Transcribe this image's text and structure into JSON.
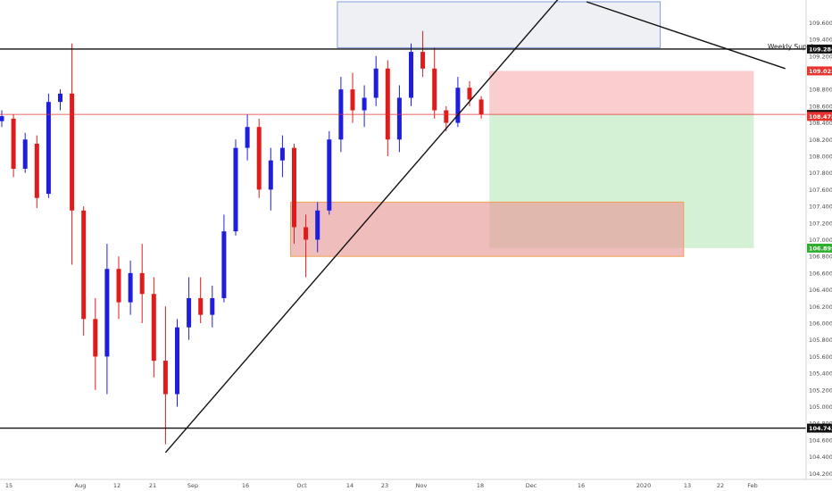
{
  "chart_data": {
    "type": "candlestick",
    "y_ticks": [
      "109.600",
      "109.400",
      "109.200",
      "109.000",
      "108.800",
      "108.600",
      "108.400",
      "108.200",
      "108.000",
      "107.800",
      "107.600",
      "107.400",
      "107.200",
      "107.000",
      "106.800",
      "106.600",
      "106.400",
      "106.200",
      "106.000",
      "105.800",
      "105.600",
      "105.400",
      "105.200",
      "105.000",
      "104.800",
      "104.600",
      "104.400",
      "104.200"
    ],
    "x_ticks": [
      "15",
      "Aug",
      "12",
      "21",
      "Sep",
      "16",
      "Oct",
      "14",
      "23",
      "Nov",
      "18",
      "Dec",
      "16",
      "2020",
      "13",
      "22",
      "Feb"
    ],
    "ylim": [
      104.15,
      109.85
    ],
    "colors": {
      "up": "#1e1edc",
      "down": "#e01b1b"
    },
    "price_badges": [
      {
        "value": "109.284",
        "color": "#111111"
      },
      {
        "value": "109.022",
        "color": "#e8332f"
      },
      {
        "value": "108.501",
        "color": "#111111"
      },
      {
        "value": "108.478",
        "color": "#e8332f"
      },
      {
        "value": "106.899",
        "color": "#2eaf2e"
      },
      {
        "value": "104.743",
        "color": "#111111"
      }
    ],
    "horizontal_lines": [
      {
        "price": 109.284,
        "color": "#111111"
      },
      {
        "price": 104.743,
        "color": "#111111"
      },
      {
        "price": 108.501,
        "color": "#e8332f"
      }
    ],
    "annotations": [
      {
        "text": "Weekly Supply"
      }
    ],
    "zones": [
      {
        "kind": "stop-loss",
        "from_bar": 42,
        "to_bar": 64,
        "price_top": 109.022,
        "price_bottom": 108.501,
        "color": "#f8b4b4"
      },
      {
        "kind": "take-profit",
        "from_bar": 42,
        "to_bar": 64,
        "price_top": 108.501,
        "price_bottom": 106.899,
        "color": "#bfe9bf"
      },
      {
        "kind": "demand",
        "from_bar": 25,
        "to_bar": 58,
        "price_top": 107.45,
        "price_bottom": 106.8,
        "color": "#e89a9a"
      },
      {
        "kind": "weekly-supply",
        "from_bar": 29,
        "to_bar": 56,
        "price_top": 109.85,
        "price_bottom": 109.3,
        "color": "#e6e8ec"
      }
    ],
    "trendlines": [
      {
        "kind": "rising-support",
        "points": [
          [
            14,
            104.45
          ],
          [
            48,
            109.95
          ]
        ]
      },
      {
        "kind": "descending",
        "points": [
          [
            50,
            109.85
          ],
          [
            67,
            109.05
          ]
        ]
      }
    ],
    "candles": [
      {
        "o": 108.42,
        "h": 108.55,
        "l": 108.35,
        "c": 108.48
      },
      {
        "o": 108.45,
        "h": 108.5,
        "l": 107.75,
        "c": 107.85
      },
      {
        "o": 107.85,
        "h": 108.28,
        "l": 107.8,
        "c": 108.2
      },
      {
        "o": 108.15,
        "h": 108.25,
        "l": 107.38,
        "c": 107.5
      },
      {
        "o": 107.55,
        "h": 108.75,
        "l": 107.5,
        "c": 108.65
      },
      {
        "o": 108.65,
        "h": 108.8,
        "l": 108.55,
        "c": 108.75
      },
      {
        "o": 108.75,
        "h": 109.35,
        "l": 106.7,
        "c": 107.35
      },
      {
        "o": 107.35,
        "h": 107.4,
        "l": 105.85,
        "c": 106.05
      },
      {
        "o": 106.05,
        "h": 106.3,
        "l": 105.2,
        "c": 105.6
      },
      {
        "o": 105.6,
        "h": 106.95,
        "l": 105.15,
        "c": 106.65
      },
      {
        "o": 106.65,
        "h": 106.8,
        "l": 106.05,
        "c": 106.25
      },
      {
        "o": 106.25,
        "h": 106.75,
        "l": 106.1,
        "c": 106.6
      },
      {
        "o": 106.6,
        "h": 106.95,
        "l": 106.0,
        "c": 106.35
      },
      {
        "o": 106.35,
        "h": 106.55,
        "l": 105.35,
        "c": 105.55
      },
      {
        "o": 105.55,
        "h": 106.2,
        "l": 104.55,
        "c": 105.15
      },
      {
        "o": 105.15,
        "h": 106.05,
        "l": 105.0,
        "c": 105.95
      },
      {
        "o": 105.95,
        "h": 106.55,
        "l": 105.8,
        "c": 106.3
      },
      {
        "o": 106.3,
        "h": 106.55,
        "l": 106.0,
        "c": 106.1
      },
      {
        "o": 106.1,
        "h": 106.45,
        "l": 105.95,
        "c": 106.3
      },
      {
        "o": 106.3,
        "h": 107.3,
        "l": 106.25,
        "c": 107.1
      },
      {
        "o": 107.1,
        "h": 108.2,
        "l": 107.05,
        "c": 108.1
      },
      {
        "o": 108.1,
        "h": 108.5,
        "l": 107.95,
        "c": 108.35
      },
      {
        "o": 108.35,
        "h": 108.45,
        "l": 107.5,
        "c": 107.6
      },
      {
        "o": 107.6,
        "h": 108.1,
        "l": 107.35,
        "c": 107.95
      },
      {
        "o": 107.95,
        "h": 108.25,
        "l": 107.75,
        "c": 108.1
      },
      {
        "o": 108.1,
        "h": 108.15,
        "l": 106.95,
        "c": 107.15
      },
      {
        "o": 107.15,
        "h": 107.3,
        "l": 106.55,
        "c": 107.0
      },
      {
        "o": 107.0,
        "h": 107.45,
        "l": 106.85,
        "c": 107.35
      },
      {
        "o": 107.35,
        "h": 108.3,
        "l": 107.3,
        "c": 108.2
      },
      {
        "o": 108.2,
        "h": 108.95,
        "l": 108.05,
        "c": 108.8
      },
      {
        "o": 108.8,
        "h": 109.0,
        "l": 108.4,
        "c": 108.55
      },
      {
        "o": 108.55,
        "h": 108.85,
        "l": 108.35,
        "c": 108.7
      },
      {
        "o": 108.7,
        "h": 109.2,
        "l": 108.6,
        "c": 109.05
      },
      {
        "o": 109.05,
        "h": 109.15,
        "l": 108.0,
        "c": 108.2
      },
      {
        "o": 108.2,
        "h": 108.85,
        "l": 108.05,
        "c": 108.7
      },
      {
        "o": 108.7,
        "h": 109.35,
        "l": 108.6,
        "c": 109.25
      },
      {
        "o": 109.25,
        "h": 109.5,
        "l": 108.95,
        "c": 109.05
      },
      {
        "o": 109.05,
        "h": 109.3,
        "l": 108.45,
        "c": 108.55
      },
      {
        "o": 108.55,
        "h": 108.6,
        "l": 108.3,
        "c": 108.4
      },
      {
        "o": 108.4,
        "h": 108.95,
        "l": 108.35,
        "c": 108.82
      },
      {
        "o": 108.82,
        "h": 108.9,
        "l": 108.6,
        "c": 108.68
      },
      {
        "o": 108.68,
        "h": 108.72,
        "l": 108.45,
        "c": 108.5
      }
    ]
  }
}
